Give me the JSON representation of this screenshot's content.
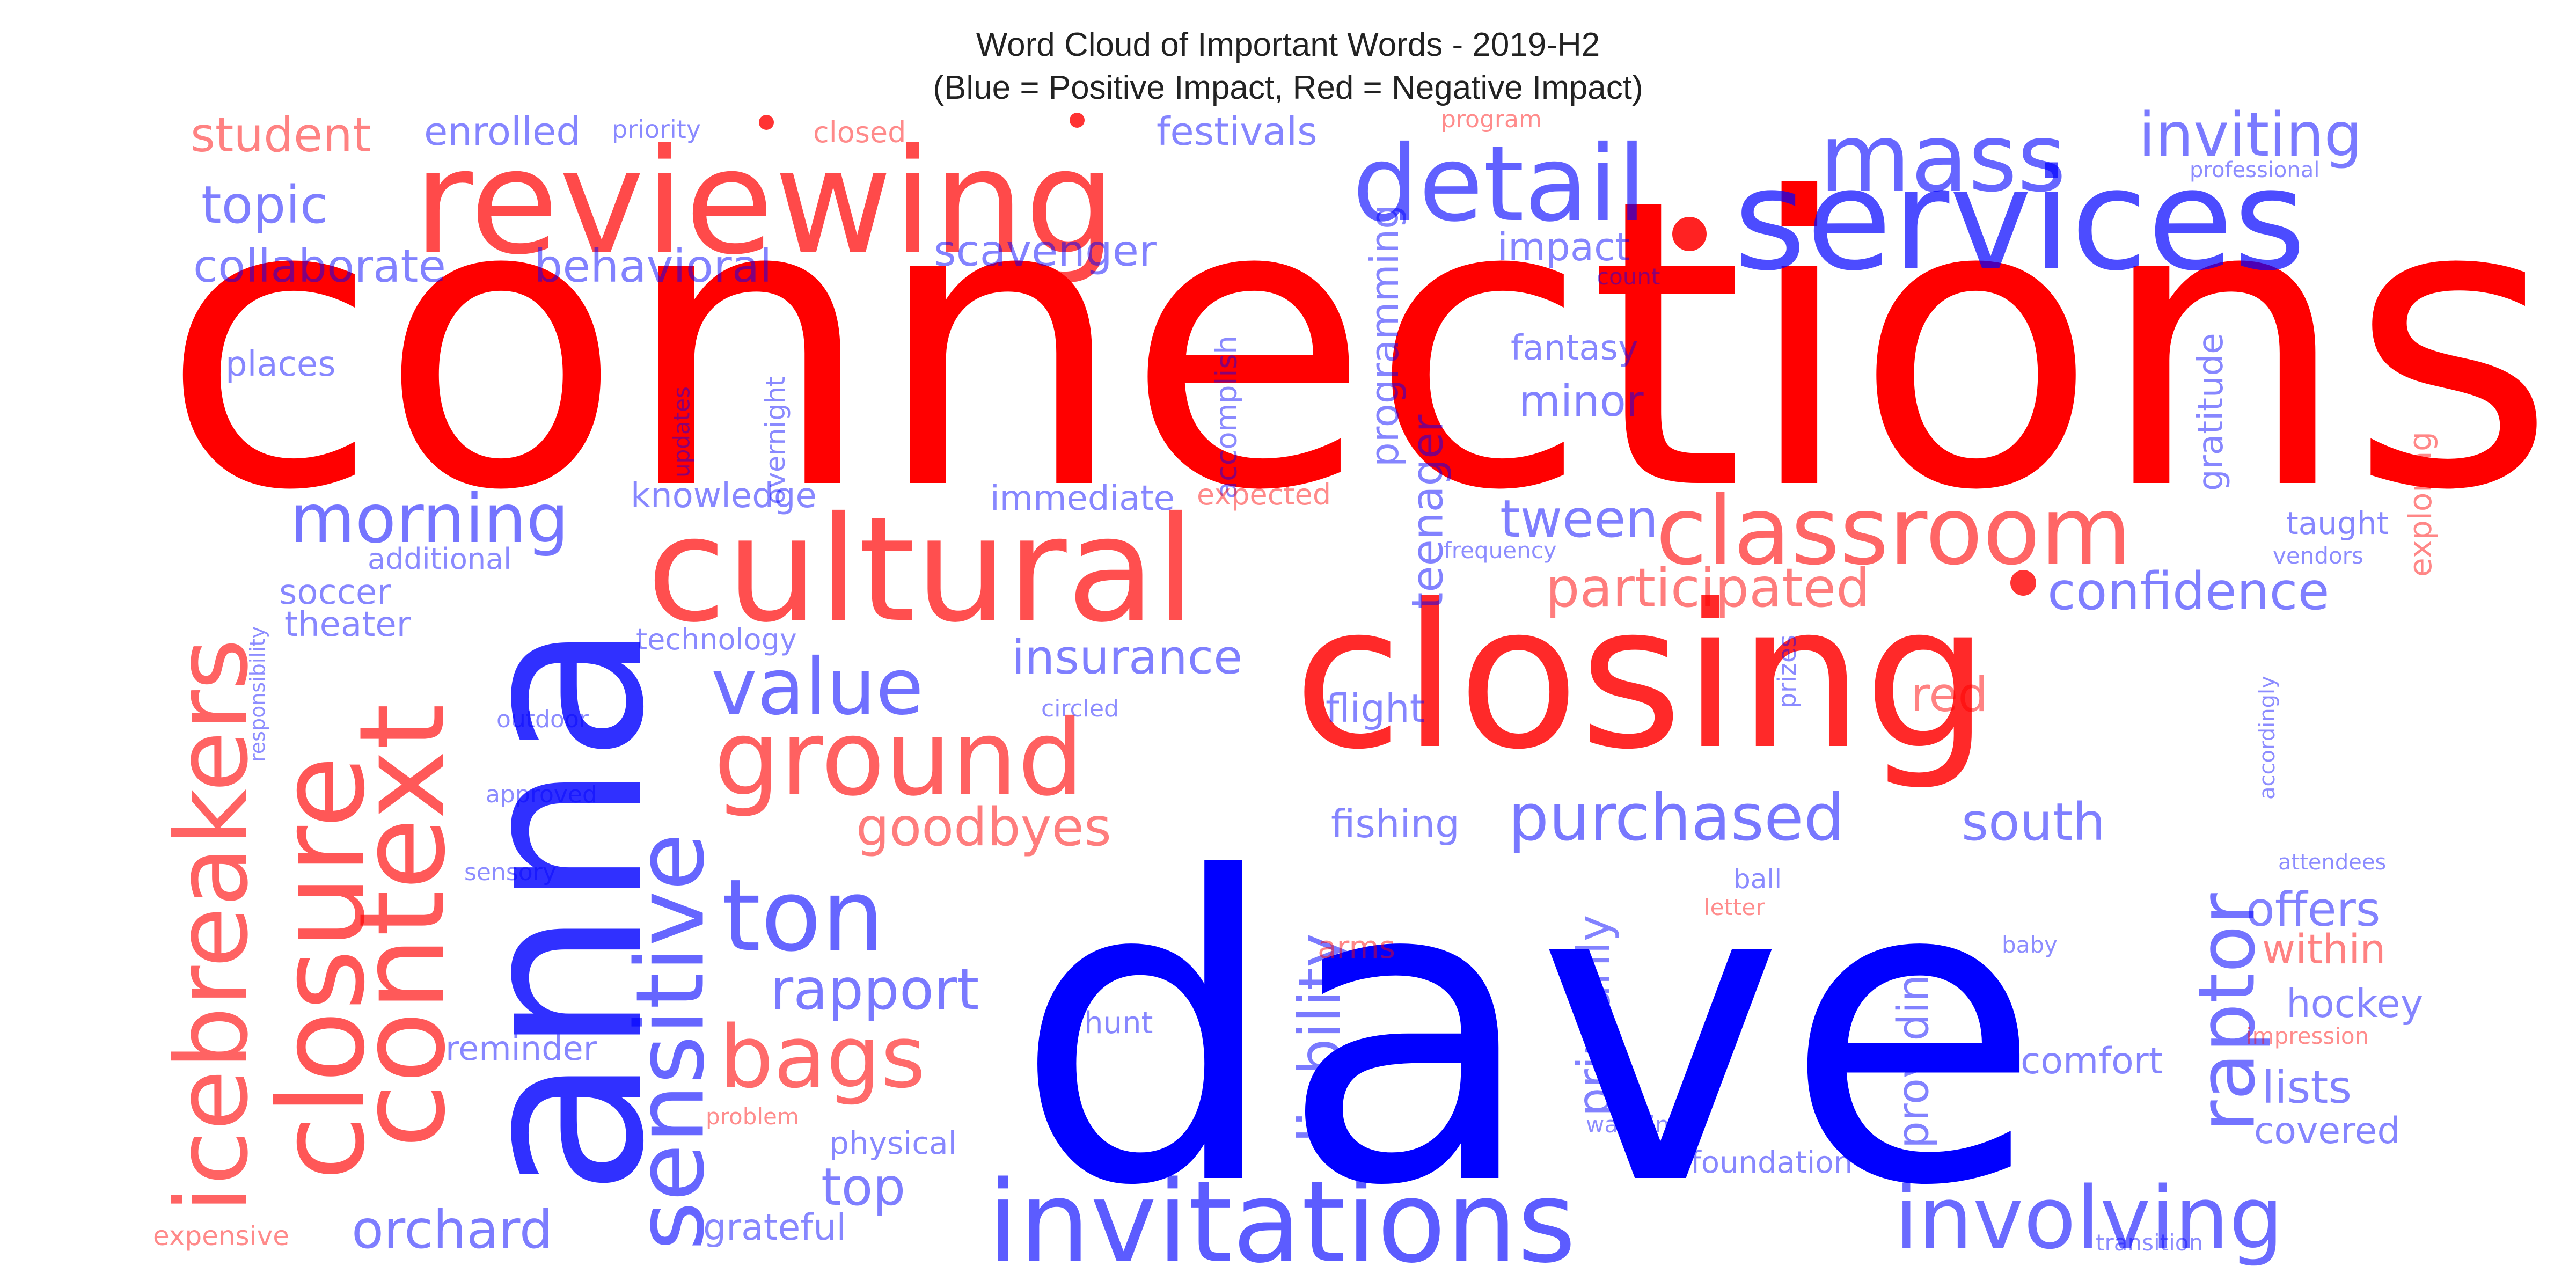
{
  "chart_data": {
    "type": "wordcloud",
    "title": "Word Cloud of Important Words - 2019-H2",
    "subtitle": "(Blue = Positive Impact, Red = Negative Impact)",
    "colors": {
      "positive": "#0000ff",
      "negative": "#ff0000"
    },
    "words": [
      {
        "text": "connections",
        "impact": "negative",
        "weight": 100,
        "orient": "h"
      },
      {
        "text": "dave",
        "impact": "positive",
        "weight": 100,
        "orient": "h"
      },
      {
        "text": "closing",
        "impact": "negative",
        "weight": 74,
        "orient": "h"
      },
      {
        "text": "anna",
        "impact": "positive",
        "weight": 68,
        "orient": "v"
      },
      {
        "text": "reviewing",
        "impact": "negative",
        "weight": 52,
        "orient": "h"
      },
      {
        "text": "services",
        "impact": "positive",
        "weight": 50,
        "orient": "h"
      },
      {
        "text": "cultural",
        "impact": "negative",
        "weight": 49,
        "orient": "h"
      },
      {
        "text": "closure",
        "impact": "negative",
        "weight": 43,
        "orient": "v"
      },
      {
        "text": "context",
        "impact": "negative",
        "weight": 42,
        "orient": "v"
      },
      {
        "text": "invitations",
        "impact": "positive",
        "weight": 41,
        "orient": "h"
      },
      {
        "text": "detail",
        "impact": "positive",
        "weight": 37,
        "orient": "h"
      },
      {
        "text": "ground",
        "impact": "negative",
        "weight": 37,
        "orient": "h"
      },
      {
        "text": "icebreakers",
        "impact": "negative",
        "weight": 36,
        "orient": "v"
      },
      {
        "text": "classroom",
        "impact": "negative",
        "weight": 33,
        "orient": "h"
      },
      {
        "text": "mass",
        "impact": "positive",
        "weight": 33,
        "orient": "h"
      },
      {
        "text": "sensitive",
        "impact": "positive",
        "weight": 33,
        "orient": "v"
      },
      {
        "text": "ton",
        "impact": "positive",
        "weight": 33,
        "orient": "h"
      },
      {
        "text": "involving",
        "impact": "positive",
        "weight": 30,
        "orient": "h"
      },
      {
        "text": "bags",
        "impact": "negative",
        "weight": 30,
        "orient": "h"
      },
      {
        "text": "value",
        "impact": "positive",
        "weight": 28,
        "orient": "h"
      },
      {
        "text": "raptor",
        "impact": "positive",
        "weight": 26,
        "orient": "v"
      },
      {
        "text": "morning",
        "impact": "positive",
        "weight": 24,
        "orient": "h"
      },
      {
        "text": "purchased",
        "impact": "positive",
        "weight": 23,
        "orient": "h"
      },
      {
        "text": "inviting",
        "impact": "positive",
        "weight": 21,
        "orient": "h"
      },
      {
        "text": "liability",
        "impact": "positive",
        "weight": 20,
        "orient": "v"
      },
      {
        "text": "rapport",
        "impact": "positive",
        "weight": 20,
        "orient": "h"
      },
      {
        "text": "goodbyes",
        "impact": "negative",
        "weight": 19,
        "orient": "h"
      },
      {
        "text": "orchard",
        "impact": "positive",
        "weight": 19,
        "orient": "h"
      },
      {
        "text": "participated",
        "impact": "negative",
        "weight": 19,
        "orient": "h"
      },
      {
        "text": "topic",
        "impact": "positive",
        "weight": 18,
        "orient": "h"
      },
      {
        "text": "tween",
        "impact": "positive",
        "weight": 18,
        "orient": "h"
      },
      {
        "text": "south",
        "impact": "positive",
        "weight": 18,
        "orient": "h"
      },
      {
        "text": "confidence",
        "impact": "positive",
        "weight": 18,
        "orient": "h"
      },
      {
        "text": "top",
        "impact": "positive",
        "weight": 18,
        "orient": "h"
      },
      {
        "text": "insurance",
        "impact": "positive",
        "weight": 17,
        "orient": "h"
      },
      {
        "text": "offers",
        "impact": "positive",
        "weight": 16,
        "orient": "h"
      },
      {
        "text": "student",
        "impact": "negative",
        "weight": 16,
        "orient": "h"
      },
      {
        "text": "collaborate",
        "impact": "positive",
        "weight": 16,
        "orient": "h"
      },
      {
        "text": "behavioral",
        "impact": "positive",
        "weight": 16,
        "orient": "h"
      },
      {
        "text": "primarily",
        "impact": "positive",
        "weight": 16,
        "orient": "v"
      },
      {
        "text": "lists",
        "impact": "positive",
        "weight": 16,
        "orient": "h"
      },
      {
        "text": "red",
        "impact": "negative",
        "weight": 16,
        "orient": "h"
      },
      {
        "text": "teenager",
        "impact": "positive",
        "weight": 15,
        "orient": "v"
      },
      {
        "text": "providing",
        "impact": "positive",
        "weight": 15,
        "orient": "v"
      },
      {
        "text": "scavenger",
        "impact": "positive",
        "weight": 15,
        "orient": "h"
      },
      {
        "text": "minor",
        "impact": "positive",
        "weight": 15,
        "orient": "h"
      },
      {
        "text": "within",
        "impact": "negative",
        "weight": 15,
        "orient": "h"
      },
      {
        "text": "festivals",
        "impact": "positive",
        "weight": 14,
        "orient": "h"
      },
      {
        "text": "enrolled",
        "impact": "positive",
        "weight": 14,
        "orient": "h"
      },
      {
        "text": "impact",
        "impact": "positive",
        "weight": 14,
        "orient": "h"
      },
      {
        "text": "programming",
        "impact": "positive",
        "weight": 14,
        "orient": "v"
      },
      {
        "text": "flight",
        "impact": "positive",
        "weight": 14,
        "orient": "h"
      },
      {
        "text": "fishing",
        "impact": "positive",
        "weight": 14,
        "orient": "h"
      },
      {
        "text": "hockey",
        "impact": "positive",
        "weight": 14,
        "orient": "h"
      },
      {
        "text": "comfort",
        "impact": "positive",
        "weight": 14,
        "orient": "h"
      },
      {
        "text": "covered",
        "impact": "positive",
        "weight": 14,
        "orient": "h"
      },
      {
        "text": "grateful",
        "impact": "positive",
        "weight": 13,
        "orient": "h"
      },
      {
        "text": "gratitude",
        "impact": "positive",
        "weight": 13,
        "orient": "v"
      },
      {
        "text": "knowledge",
        "impact": "positive",
        "weight": 13,
        "orient": "h"
      },
      {
        "text": "fantasy",
        "impact": "positive",
        "weight": 13,
        "orient": "h"
      },
      {
        "text": "immediate",
        "impact": "positive",
        "weight": 13,
        "orient": "h"
      },
      {
        "text": "places",
        "impact": "positive",
        "weight": 13,
        "orient": "h"
      },
      {
        "text": "soccer",
        "impact": "positive",
        "weight": 13,
        "orient": "h"
      },
      {
        "text": "theater",
        "impact": "positive",
        "weight": 13,
        "orient": "h"
      },
      {
        "text": "reminder",
        "impact": "positive",
        "weight": 13,
        "orient": "h"
      },
      {
        "text": "exploring",
        "impact": "negative",
        "weight": 12,
        "orient": "v"
      },
      {
        "text": "taught",
        "impact": "positive",
        "weight": 12,
        "orient": "h"
      },
      {
        "text": "physical",
        "impact": "positive",
        "weight": 12,
        "orient": "h"
      },
      {
        "text": "foundation",
        "impact": "positive",
        "weight": 12,
        "orient": "h"
      },
      {
        "text": "arms",
        "impact": "negative",
        "weight": 12,
        "orient": "h"
      },
      {
        "text": "hunt",
        "impact": "positive",
        "weight": 12,
        "orient": "h"
      },
      {
        "text": "accomplish",
        "impact": "positive",
        "weight": 11,
        "orient": "v"
      },
      {
        "text": "additional",
        "impact": "positive",
        "weight": 11,
        "orient": "h"
      },
      {
        "text": "technology",
        "impact": "positive",
        "weight": 11,
        "orient": "h"
      },
      {
        "text": "expected",
        "impact": "negative",
        "weight": 11,
        "orient": "h"
      },
      {
        "text": "closed",
        "impact": "negative",
        "weight": 11,
        "orient": "h"
      },
      {
        "text": "overnight",
        "impact": "positive",
        "weight": 11,
        "orient": "v"
      },
      {
        "text": "expensive",
        "impact": "negative",
        "weight": 11,
        "orient": "h"
      },
      {
        "text": "ball",
        "impact": "positive",
        "weight": 11,
        "orient": "h"
      },
      {
        "text": "prizes",
        "impact": "positive",
        "weight": 10,
        "orient": "v"
      },
      {
        "text": "priority",
        "impact": "positive",
        "weight": 10,
        "orient": "h"
      },
      {
        "text": "program",
        "impact": "negative",
        "weight": 9,
        "orient": "h"
      },
      {
        "text": "professional",
        "impact": "positive",
        "weight": 9,
        "orient": "h"
      },
      {
        "text": "count",
        "impact": "positive",
        "weight": 9,
        "orient": "h"
      },
      {
        "text": "updates",
        "impact": "positive",
        "weight": 9,
        "orient": "v"
      },
      {
        "text": "frequency",
        "impact": "positive",
        "weight": 9,
        "orient": "h"
      },
      {
        "text": "vendors",
        "impact": "positive",
        "weight": 9,
        "orient": "h"
      },
      {
        "text": "responsibility",
        "impact": "positive",
        "weight": 9,
        "orient": "v"
      },
      {
        "text": "outdoor",
        "impact": "positive",
        "weight": 9,
        "orient": "h"
      },
      {
        "text": "circled",
        "impact": "positive",
        "weight": 9,
        "orient": "h"
      },
      {
        "text": "approved",
        "impact": "positive",
        "weight": 9,
        "orient": "h"
      },
      {
        "text": "sensory",
        "impact": "positive",
        "weight": 9,
        "orient": "h"
      },
      {
        "text": "accordingly",
        "impact": "positive",
        "weight": 9,
        "orient": "v"
      },
      {
        "text": "attendees",
        "impact": "positive",
        "weight": 9,
        "orient": "h"
      },
      {
        "text": "letter",
        "impact": "negative",
        "weight": 9,
        "orient": "h"
      },
      {
        "text": "baby",
        "impact": "positive",
        "weight": 9,
        "orient": "h"
      },
      {
        "text": "impression",
        "impact": "negative",
        "weight": 9,
        "orient": "h"
      },
      {
        "text": "problem",
        "impact": "negative",
        "weight": 9,
        "orient": "h"
      },
      {
        "text": "warming",
        "impact": "positive",
        "weight": 9,
        "orient": "h"
      },
      {
        "text": "transition",
        "impact": "positive",
        "weight": 9,
        "orient": "h"
      }
    ]
  }
}
